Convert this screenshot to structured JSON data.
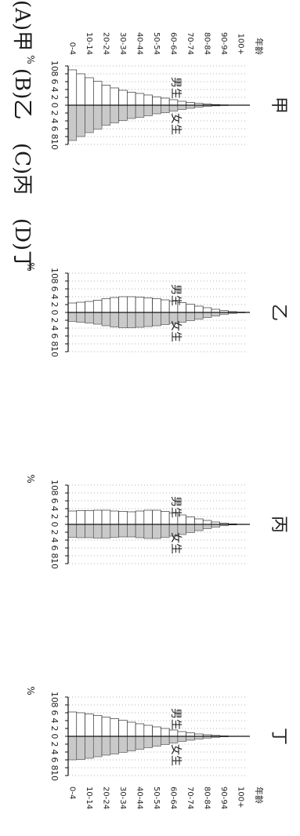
{
  "age_groups": [
    "0-4",
    "5-9",
    "10-14",
    "15-19",
    "20-24",
    "25-29",
    "30-34",
    "35-39",
    "40-44",
    "45-49",
    "50-54",
    "55-59",
    "60-64",
    "65-69",
    "70-74",
    "75-79",
    "80-84",
    "85-89",
    "90-94",
    "95-99",
    "100+"
  ],
  "chart_data": [
    {
      "type": "bar",
      "title": "甲",
      "orientation": "horizontal-pyramid",
      "categories": [
        "0-4",
        "5-9",
        "10-14",
        "15-19",
        "20-24",
        "25-29",
        "30-34",
        "35-39",
        "40-44",
        "45-49",
        "50-54",
        "55-59",
        "60-64",
        "65-69",
        "70-74",
        "75-79",
        "80-84",
        "85-89",
        "90-94",
        "95-99",
        "100+"
      ],
      "tick_labels": [
        "0-4",
        "10-14",
        "20-24",
        "30-34",
        "40-44",
        "50-54",
        "60-64",
        "70-74",
        "80-84",
        "90-94",
        "100+"
      ],
      "age_axis_label": "年齡",
      "xlabel": "%",
      "x_ticks": [
        "10",
        "8",
        "6",
        "4",
        "2",
        "0",
        "2",
        "4",
        "6",
        "8",
        "10"
      ],
      "xlim": [
        -10,
        10
      ],
      "series": [
        {
          "name": "男生",
          "values": [
            9.0,
            8.0,
            7.0,
            6.1,
            5.1,
            4.4,
            3.8,
            3.3,
            3.0,
            2.6,
            2.1,
            1.8,
            1.4,
            1.0,
            0.7,
            0.45,
            0.28,
            0.15,
            0.08,
            0.03,
            0.01
          ]
        },
        {
          "name": "女生",
          "values": [
            9.0,
            8.0,
            7.0,
            6.1,
            5.1,
            4.5,
            3.9,
            3.4,
            3.1,
            2.7,
            2.2,
            1.9,
            1.5,
            1.1,
            0.8,
            0.5,
            0.32,
            0.18,
            0.09,
            0.04,
            0.01
          ]
        }
      ]
    },
    {
      "type": "bar",
      "title": "乙",
      "orientation": "horizontal-pyramid",
      "categories": [
        "0-4",
        "5-9",
        "10-14",
        "15-19",
        "20-24",
        "25-29",
        "30-34",
        "35-39",
        "40-44",
        "45-49",
        "50-54",
        "55-59",
        "60-64",
        "65-69",
        "70-74",
        "75-79",
        "80-84",
        "85-89",
        "90-94",
        "95-99",
        "100+"
      ],
      "xlabel": "%",
      "x_ticks": [
        "10",
        "8",
        "6",
        "4",
        "2",
        "0",
        "2",
        "4",
        "6",
        "8",
        "10"
      ],
      "xlim": [
        -10,
        10
      ],
      "series": [
        {
          "name": "男生",
          "values": [
            2.4,
            2.6,
            2.8,
            3.1,
            3.5,
            3.8,
            4.0,
            4.0,
            3.9,
            3.7,
            3.5,
            3.2,
            2.9,
            2.5,
            2.1,
            1.6,
            1.2,
            0.8,
            0.45,
            0.2,
            0.08
          ]
        },
        {
          "name": "女生",
          "values": [
            2.3,
            2.5,
            2.7,
            3.0,
            3.4,
            3.7,
            3.9,
            3.9,
            3.8,
            3.6,
            3.4,
            3.1,
            2.8,
            2.5,
            2.1,
            1.7,
            1.3,
            0.9,
            0.5,
            0.25,
            0.1
          ]
        }
      ]
    },
    {
      "type": "bar",
      "title": "丙",
      "orientation": "horizontal-pyramid",
      "categories": [
        "0-4",
        "5-9",
        "10-14",
        "15-19",
        "20-24",
        "25-29",
        "30-34",
        "35-39",
        "40-44",
        "45-49",
        "50-54",
        "55-59",
        "60-64",
        "65-69",
        "70-74",
        "75-79",
        "80-84",
        "85-89",
        "90-94",
        "95-99",
        "100+"
      ],
      "xlabel": "%",
      "x_ticks": [
        "10",
        "8",
        "6",
        "4",
        "2",
        "0",
        "2",
        "4",
        "6",
        "8",
        "10"
      ],
      "xlim": [
        -10,
        10
      ],
      "series": [
        {
          "name": "男生",
          "values": [
            3.4,
            3.5,
            3.5,
            3.6,
            3.6,
            3.4,
            3.3,
            3.2,
            3.4,
            3.6,
            3.6,
            3.3,
            2.9,
            2.4,
            1.9,
            1.4,
            1.0,
            0.6,
            0.3,
            0.12,
            0.04
          ]
        },
        {
          "name": "女生",
          "values": [
            3.3,
            3.4,
            3.4,
            3.5,
            3.5,
            3.3,
            3.2,
            3.2,
            3.4,
            3.6,
            3.6,
            3.3,
            3.0,
            2.6,
            2.1,
            1.6,
            1.1,
            0.7,
            0.35,
            0.15,
            0.05
          ]
        }
      ]
    },
    {
      "type": "bar",
      "title": "丁",
      "orientation": "horizontal-pyramid",
      "categories": [
        "0-4",
        "5-9",
        "10-14",
        "15-19",
        "20-24",
        "25-29",
        "30-34",
        "35-39",
        "40-44",
        "45-49",
        "50-54",
        "55-59",
        "60-64",
        "65-69",
        "70-74",
        "75-79",
        "80-84",
        "85-89",
        "90-94",
        "95-99",
        "100+"
      ],
      "tick_labels": [
        "0-4",
        "10-14",
        "20-24",
        "30-34",
        "40-44",
        "50-54",
        "60-64",
        "70-74",
        "80-84",
        "90-94",
        "100+"
      ],
      "age_axis_label": "年齡",
      "xlabel": "%",
      "x_ticks": [
        "10",
        "8",
        "6",
        "4",
        "2",
        "0",
        "2",
        "4",
        "6",
        "8",
        "10"
      ],
      "xlim": [
        -10,
        10
      ],
      "series": [
        {
          "name": "男生",
          "values": [
            6.2,
            6.0,
            5.7,
            5.3,
            4.9,
            4.5,
            4.1,
            3.6,
            3.2,
            2.8,
            2.4,
            2.0,
            1.6,
            1.2,
            0.9,
            0.6,
            0.4,
            0.22,
            0.1,
            0.04,
            0.01
          ]
        },
        {
          "name": "女生",
          "values": [
            6.0,
            5.9,
            5.6,
            5.2,
            4.8,
            4.5,
            4.1,
            3.7,
            3.3,
            2.9,
            2.5,
            2.1,
            1.7,
            1.3,
            1.0,
            0.7,
            0.45,
            0.26,
            0.12,
            0.05,
            0.02
          ]
        }
      ]
    }
  ],
  "options": [
    {
      "label": "(A)甲"
    },
    {
      "label": "(B)乙"
    },
    {
      "label": "(C)丙"
    },
    {
      "label": "(D)丁"
    }
  ],
  "colors": {
    "male_fill": "#ffffff",
    "female_fill": "#c9c9c9",
    "axis": "#111111",
    "grid_dots": "#9a9a9a"
  }
}
